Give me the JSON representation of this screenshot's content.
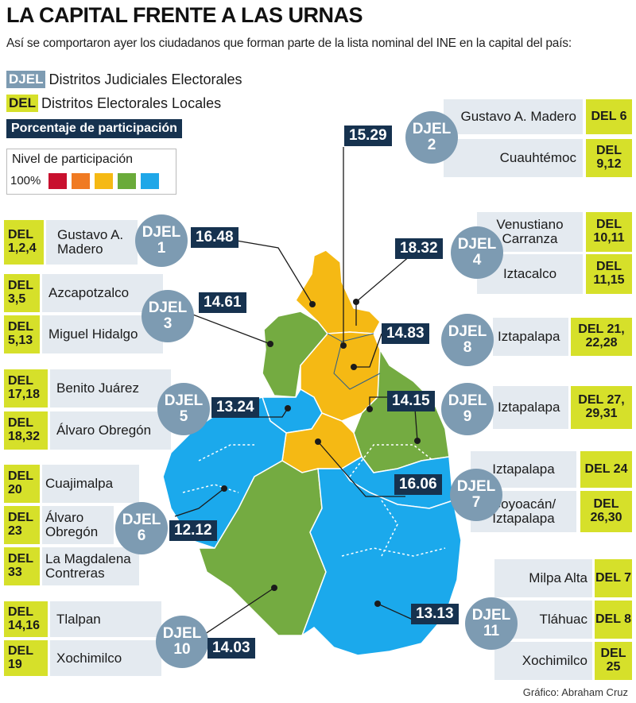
{
  "title": "LA CAPITAL FRENTE A LAS URNAS",
  "subtitle": "Así se comportaron ayer los ciudadanos que forman parte de la lista nominal del INE en la capital del país:",
  "legend": {
    "djel_tag": "DJEL",
    "djel_text": "Distritos Judiciales Electorales",
    "del_tag": "DEL",
    "del_text": "Distritos Electorales Locales",
    "pct_label": "Porcentaje de participación",
    "nivel_title": "Nivel de participación",
    "nivel_pct": "100%",
    "nivel_colors": [
      "#c8102e",
      "#f07a22",
      "#f5b914",
      "#6aab3a",
      "#1fa7e8"
    ]
  },
  "colors": {
    "green": "#74ab41",
    "yellow": "#f5b914",
    "blue": "#1ba9ec",
    "navy": "#16324f",
    "djel": "#7d9bb2",
    "del": "#d6e02a"
  },
  "districts": [
    {
      "djel": "DJEL",
      "num": "1",
      "pct": "16.48"
    },
    {
      "djel": "DJEL",
      "num": "2",
      "pct": "15.29"
    },
    {
      "djel": "DJEL",
      "num": "3",
      "pct": "14.61"
    },
    {
      "djel": "DJEL",
      "num": "4",
      "pct": "18.32"
    },
    {
      "djel": "DJEL",
      "num": "5",
      "pct": "13.24"
    },
    {
      "djel": "DJEL",
      "num": "6",
      "pct": "12.12"
    },
    {
      "djel": "DJEL",
      "num": "7",
      "pct": "16.06"
    },
    {
      "djel": "DJEL",
      "num": "8",
      "pct": "14.83"
    },
    {
      "djel": "DJEL",
      "num": "9",
      "pct": "14.15"
    },
    {
      "djel": "DJEL",
      "num": "10",
      "pct": "14.03"
    },
    {
      "djel": "DJEL",
      "num": "11",
      "pct": "13.13"
    }
  ],
  "labels": {
    "d2a_name": "Gustavo A. Madero",
    "d2a_del": "DEL 6",
    "d2b_name": "Cuauhtémoc",
    "d2b_del": "DEL 9,12",
    "d1_name": "Gustavo A. Madero",
    "d1_del": "DEL 1,2,4",
    "d4a_name": "Venustiano Carranza",
    "d4a_del": "DEL 10,11",
    "d4b_name": "Iztacalco",
    "d4b_del": "DEL 11,15",
    "d3a_name": "Azcapotzalco",
    "d3a_del": "DEL 3,5",
    "d3b_name": "Miguel Hidalgo",
    "d3b_del": "DEL 5,13",
    "d8_name": "Iztapalapa",
    "d8_del": "DEL 21, 22,28",
    "d5a_name": "Benito Juárez",
    "d5a_del": "DEL 17,18",
    "d5b_name": "Álvaro Obregón",
    "d5b_del": "DEL 18,32",
    "d9_name": "Iztapalapa",
    "d9_del": "DEL 27, 29,31",
    "d7a_name": "Iztapalapa",
    "d7a_del": "DEL 24",
    "d7b_name": "Coyoacán/ Iztapalapa",
    "d7b_del": "DEL 26,30",
    "d6a_name": "Cuajimalpa",
    "d6a_del": "DEL 20",
    "d6b_name": "Álvaro Obregón",
    "d6b_del": "DEL 23",
    "d6c_name": "La Magdalena Contreras",
    "d6c_del": "DEL 33",
    "d11a_name": "Milpa Alta",
    "d11a_del": "DEL 7",
    "d11b_name": "Tláhuac",
    "d11b_del": "DEL 8",
    "d11c_name": "Xochimilco",
    "d11c_del": "DEL 25",
    "d10a_name": "Tlalpan",
    "d10a_del": "DEL 14,16",
    "d10b_name": "Xochimilco",
    "d10b_del": "DEL 19"
  },
  "credit": "Gráfico: Abraham Cruz"
}
